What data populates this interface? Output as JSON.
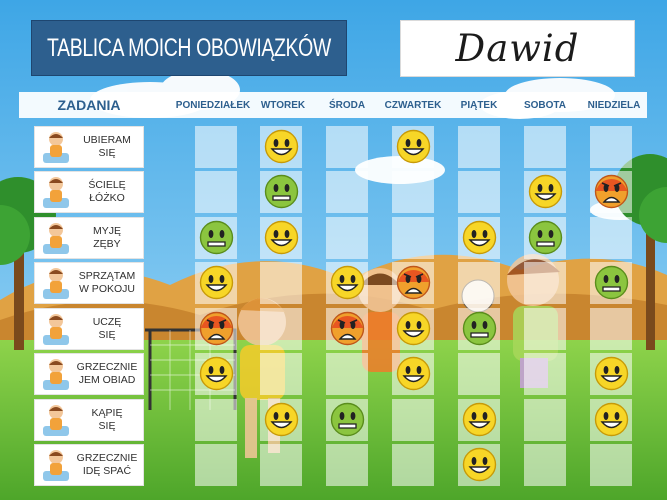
{
  "title": "TABLICA MOICH OBOWIĄZKÓW",
  "child_name": "Dawid",
  "tasks_header": "ZADANIA",
  "days": [
    "PONIEDZIAŁEK",
    "WTOREK",
    "ŚRODA",
    "CZWARTEK",
    "PIĄTEK",
    "SOBOTA",
    "NIEDZIELA"
  ],
  "tasks": [
    {
      "label": "UBIERAM\nSIĘ",
      "icon": "dressing-child-icon"
    },
    {
      "label": "ŚCIELĘ\nŁÓŻKO",
      "icon": "making-bed-icon"
    },
    {
      "label": "MYJĘ\nZĘBY",
      "icon": "brushing-teeth-icon"
    },
    {
      "label": "SPRZĄTAM\nW POKOJU",
      "icon": "cleaning-room-icon"
    },
    {
      "label": "UCZĘ\nSIĘ",
      "icon": "studying-children-icon"
    },
    {
      "label": "GRZECZNIE\nJEM OBIAD",
      "icon": "eating-dinner-icon"
    },
    {
      "label": "KĄPIĘ\nSIĘ",
      "icon": "bathing-icon"
    },
    {
      "label": "GRZECZNIE\nIDĘ SPAĆ",
      "icon": "sleeping-child-icon"
    }
  ],
  "legend_moods": {
    "y": "yellow-happy",
    "g": "green-neutral",
    "r": "red-angry",
    "-": "empty"
  },
  "grid": [
    [
      "-",
      "y",
      "-",
      "y",
      "-",
      "-",
      "-"
    ],
    [
      "-",
      "g",
      "-",
      "-",
      "-",
      "y",
      "r"
    ],
    [
      "g",
      "y",
      "-",
      "-",
      "y",
      "g",
      "-"
    ],
    [
      "y",
      "-",
      "y",
      "r",
      "-",
      "-",
      "g"
    ],
    [
      "r",
      "-",
      "r",
      "y",
      "g",
      "-",
      "-"
    ],
    [
      "y",
      "-",
      "-",
      "y",
      "-",
      "-",
      "y"
    ],
    [
      "-",
      "y",
      "g",
      "-",
      "y",
      "-",
      "y"
    ],
    [
      "-",
      "-",
      "-",
      "-",
      "y",
      "-",
      "-"
    ]
  ],
  "colors": {
    "title_bg": "#2d5f8e",
    "header_text": "#2d5f8e",
    "sky": "#63b9ea",
    "grass": "#6cc33a"
  }
}
